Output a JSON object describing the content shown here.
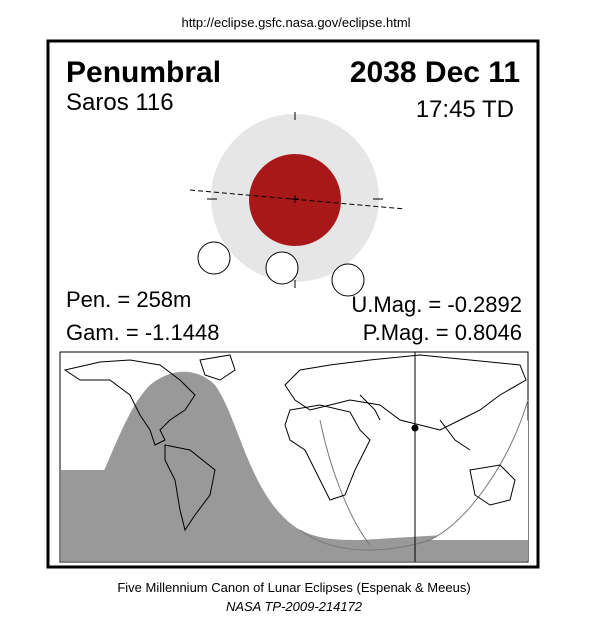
{
  "header": {
    "url": "http://eclipse.gsfc.nasa.gov/eclipse.html"
  },
  "eclipse": {
    "type": "Penumbral",
    "date": "2038 Dec 11",
    "saros": "Saros 116",
    "time": "17:45 TD",
    "pen_duration": "Pen. = 258m",
    "gamma": "Gam. = -1.1448",
    "umbral_mag": "U.Mag. = -0.2892",
    "penumbral_mag": "P.Mag. = 0.8046"
  },
  "footer": {
    "title": "Five Millennium Canon of Lunar Eclipses (Espenak & Meeus)",
    "reference": "NASA TP-2009-214172"
  }
}
